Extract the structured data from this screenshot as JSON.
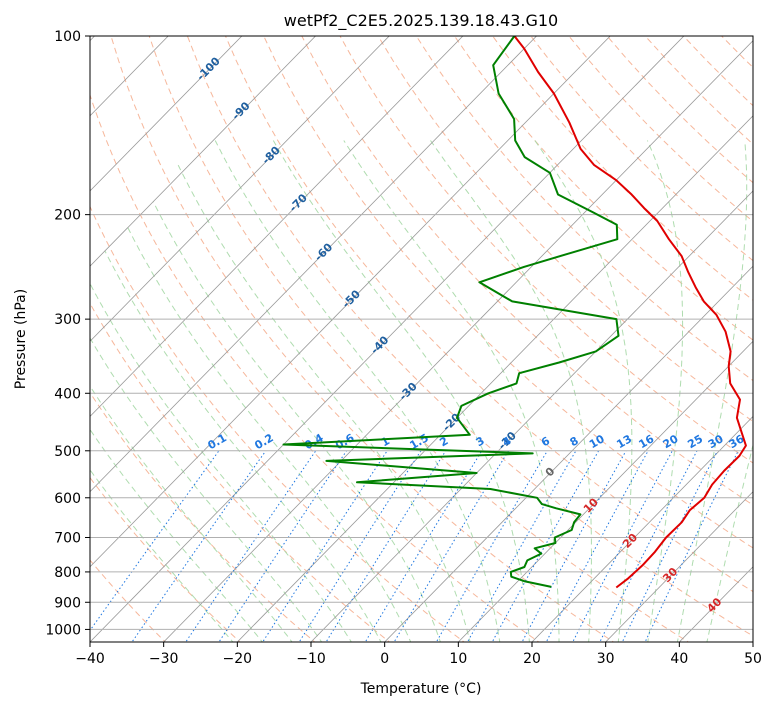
{
  "chart_data": {
    "type": "line",
    "title": "wetPf2_C2E5.2025.139.18.43.G10",
    "xlabel": "Temperature (°C)",
    "ylabel": "Pressure (hPa)",
    "xlim": [
      -40,
      50
    ],
    "ylim": [
      1050,
      100
    ],
    "y_scale": "log",
    "grid": true,
    "x_ticks": [
      -40,
      -30,
      -20,
      -10,
      0,
      10,
      20,
      30,
      40,
      50
    ],
    "y_ticks": [
      100,
      200,
      300,
      400,
      500,
      600,
      700,
      800,
      900,
      1000
    ],
    "skew_isotherm_labels": [
      {
        "value": "-100",
        "p": 113
      },
      {
        "value": "-90",
        "p": 133
      },
      {
        "value": "-80",
        "p": 158
      },
      {
        "value": "-70",
        "p": 190
      },
      {
        "value": "-60",
        "p": 230
      },
      {
        "value": "-50",
        "p": 276
      },
      {
        "value": "-40",
        "p": 330
      },
      {
        "value": "-30",
        "p": 395
      },
      {
        "value": "-20",
        "p": 445
      },
      {
        "value": "-10",
        "p": 478
      },
      {
        "value": "0",
        "p": 540
      },
      {
        "value": "10",
        "p": 615
      },
      {
        "value": "20",
        "p": 705
      },
      {
        "value": "30",
        "p": 805
      },
      {
        "value": "40",
        "p": 905
      }
    ],
    "mixing_ratio_labels": [
      "0.1",
      "0.2",
      "0.4",
      "0.6",
      "1",
      "1.5",
      "2",
      "3",
      "4",
      "6",
      "8",
      "10",
      "13",
      "16",
      "20",
      "25",
      "30",
      "36"
    ],
    "colors": {
      "temperature": "#e00000",
      "dewpoint": "#008000",
      "isotherm": "#999999",
      "dry_adiabat": "#f4a582",
      "moist_adiabat": "#a6d8a6",
      "mixing_ratio": "#1f77e0",
      "isotherm_label": "#1f5f9f",
      "positive_label": "#d62728",
      "zero_label": "#666666"
    },
    "series": [
      {
        "role": "temperature",
        "points": [
          [
            24.2,
            850
          ],
          [
            24.6,
            820
          ],
          [
            24.8,
            780
          ],
          [
            24.7,
            740
          ],
          [
            24.3,
            700
          ],
          [
            24.4,
            660
          ],
          [
            23.9,
            630
          ],
          [
            24.2,
            600
          ],
          [
            23.5,
            570
          ],
          [
            23.3,
            540
          ],
          [
            23.4,
            510
          ],
          [
            22.9,
            490
          ],
          [
            21.0,
            470
          ],
          [
            18.0,
            440
          ],
          [
            16.0,
            410
          ],
          [
            12.5,
            385
          ],
          [
            10.0,
            360
          ],
          [
            8.3,
            340
          ],
          [
            5.0,
            315
          ],
          [
            1.5,
            295
          ],
          [
            -2.0,
            280
          ],
          [
            -5.0,
            265
          ],
          [
            -8.0,
            250
          ],
          [
            -11.0,
            235
          ],
          [
            -15.0,
            220
          ],
          [
            -19.0,
            205
          ],
          [
            -22.5,
            195
          ],
          [
            -26.0,
            185
          ],
          [
            -30.0,
            175
          ],
          [
            -35.0,
            165
          ],
          [
            -39.0,
            155
          ],
          [
            -44.0,
            140
          ],
          [
            -50.0,
            125
          ],
          [
            -55.0,
            115
          ],
          [
            -60.0,
            105
          ],
          [
            -63.0,
            100
          ]
        ]
      },
      {
        "role": "dewpoint",
        "points": [
          [
            15.3,
            848
          ],
          [
            11.0,
            830
          ],
          [
            8.5,
            815
          ],
          [
            7.8,
            800
          ],
          [
            9.0,
            785
          ],
          [
            8.5,
            765
          ],
          [
            9.5,
            745
          ],
          [
            7.9,
            730
          ],
          [
            10.0,
            715
          ],
          [
            9.2,
            700
          ],
          [
            10.5,
            680
          ],
          [
            9.8,
            660
          ],
          [
            9.6,
            640
          ],
          [
            5.5,
            625
          ],
          [
            3.0,
            615
          ],
          [
            1.5,
            600
          ],
          [
            -6.0,
            580
          ],
          [
            -25.0,
            565
          ],
          [
            -10.0,
            545
          ],
          [
            -32.0,
            520
          ],
          [
            -5.0,
            505
          ],
          [
            -40.0,
            488
          ],
          [
            -16.0,
            470
          ],
          [
            -20.0,
            440
          ],
          [
            -21.0,
            420
          ],
          [
            -19.0,
            400
          ],
          [
            -16.5,
            385
          ],
          [
            -17.5,
            370
          ],
          [
            -13.5,
            355
          ],
          [
            -10.0,
            340
          ],
          [
            -9.0,
            320
          ],
          [
            -11.5,
            300
          ],
          [
            -28.0,
            280
          ],
          [
            -35.0,
            260
          ],
          [
            -31.0,
            245
          ],
          [
            -26.5,
            232
          ],
          [
            -22.0,
            220
          ],
          [
            -24.0,
            208
          ],
          [
            -29.0,
            198
          ],
          [
            -36.0,
            185
          ],
          [
            -40.0,
            170
          ],
          [
            -45.5,
            160
          ],
          [
            -49.0,
            150
          ],
          [
            -52.0,
            138
          ],
          [
            -57.5,
            125
          ],
          [
            -62.0,
            112
          ],
          [
            -63.0,
            100
          ]
        ]
      }
    ]
  }
}
